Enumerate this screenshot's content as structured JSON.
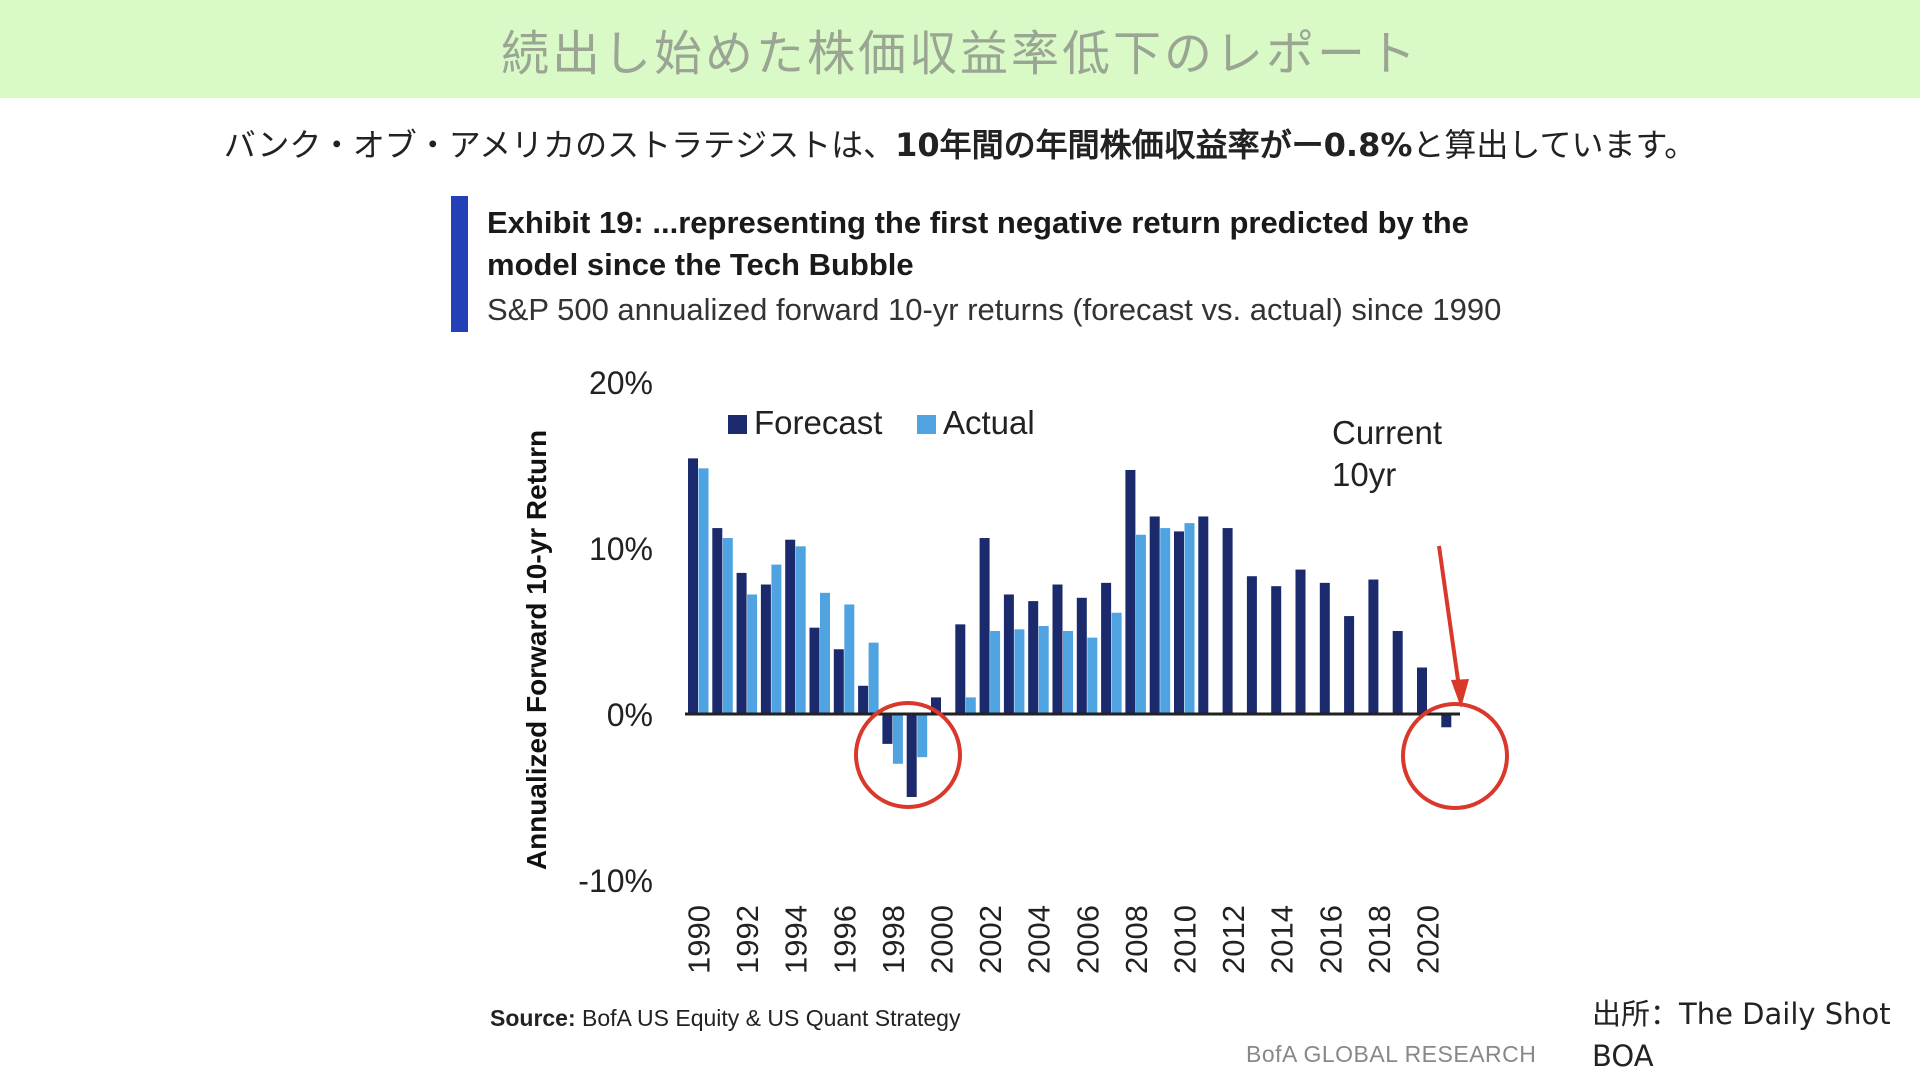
{
  "header": {
    "title": "続出し始めた株価収益率低下のレポート",
    "color": "#d9f9c6"
  },
  "intro": {
    "prefix": "バンク・オブ・アメリカのストラテジストは、",
    "emphasis": "10年間の年間株価収益率がー0.8%",
    "suffix": "と算出しています。"
  },
  "exhibit": {
    "title_line1": "Exhibit 19: ...representing the first negative return predicted by the",
    "title_line2": "model since the Tech Bubble",
    "subtitle": "S&P 500 annualized forward 10-yr returns (forecast vs. actual) since 1990",
    "accent_color": "#2340b8"
  },
  "chart_data": {
    "type": "bar",
    "ylabel": "Annualized Forward 10-yr Return",
    "ylim": [
      -0.1,
      0.2
    ],
    "yticks": [
      {
        "value": 0.2,
        "label": "20%"
      },
      {
        "value": 0.1,
        "label": "10%"
      },
      {
        "value": 0.0,
        "label": "0%"
      },
      {
        "value": -0.1,
        "label": "-10%"
      }
    ],
    "categories": [
      "1990",
      "1991",
      "1992",
      "1993",
      "1994",
      "1995",
      "1996",
      "1997",
      "1998",
      "1999",
      "2000",
      "2001",
      "2002",
      "2003",
      "2004",
      "2005",
      "2006",
      "2007",
      "2008",
      "2009",
      "2010",
      "2011",
      "2012",
      "2013",
      "2014",
      "2015",
      "2016",
      "2017",
      "2018",
      "2019",
      "2020",
      "2021"
    ],
    "xtick_labels": [
      "1990",
      "1992",
      "1994",
      "1996",
      "1998",
      "2000",
      "2002",
      "2004",
      "2006",
      "2008",
      "2010",
      "2012",
      "2014",
      "2016",
      "2018",
      "2020"
    ],
    "legend_position": "top-left",
    "grid": false,
    "series": [
      {
        "name": "Forecast",
        "color": "#1a2a6c",
        "values": [
          0.154,
          0.112,
          0.085,
          0.078,
          0.105,
          0.052,
          0.039,
          0.017,
          -0.018,
          -0.05,
          0.01,
          0.054,
          0.106,
          0.072,
          0.068,
          0.078,
          0.07,
          0.079,
          0.147,
          0.119,
          0.11,
          0.119,
          0.112,
          0.083,
          0.077,
          0.087,
          0.079,
          0.059,
          0.081,
          0.05,
          0.028,
          -0.008
        ]
      },
      {
        "name": "Actual",
        "color": "#4fa3e0",
        "values": [
          0.148,
          0.106,
          0.072,
          0.09,
          0.101,
          0.073,
          0.066,
          0.043,
          -0.03,
          -0.026,
          null,
          0.01,
          0.05,
          0.051,
          0.053,
          0.05,
          0.046,
          0.061,
          0.108,
          0.112,
          0.115,
          null,
          null,
          null,
          null,
          null,
          null,
          null,
          null,
          null,
          null,
          null
        ]
      }
    ],
    "annotations": [
      {
        "text_line1": "Current",
        "text_line2": "10yr"
      }
    ],
    "highlight_color": "#d9382b"
  },
  "footer": {
    "source_label": "Source:",
    "source_text": "BofA US Equity & US Quant Strategy",
    "brand": "BofA GLOBAL RESEARCH",
    "credit_line1": "出所：The Daily Shot",
    "credit_line2": "BOA"
  }
}
